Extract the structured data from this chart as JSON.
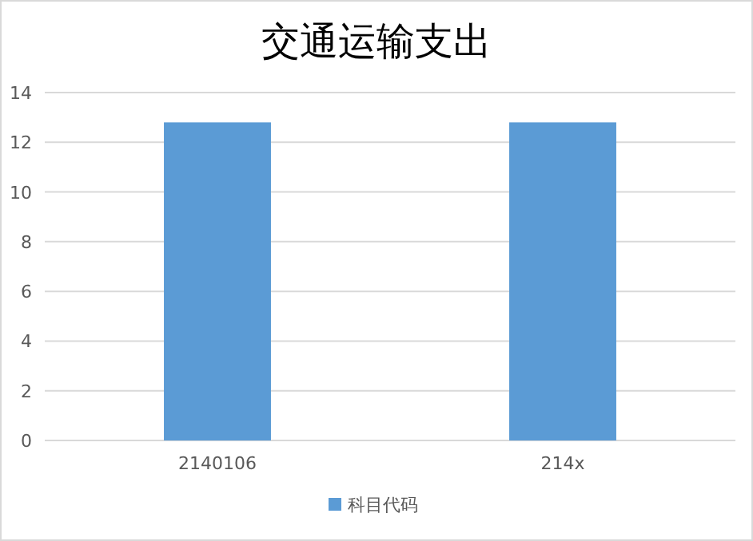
{
  "chart_data": {
    "type": "bar",
    "title": "交通运输支出",
    "categories": [
      "2140106",
      "214x"
    ],
    "series": [
      {
        "name": "科目代码",
        "color": "#5b9bd5",
        "values": [
          12.8,
          12.8
        ]
      }
    ],
    "ylim": [
      0,
      14
    ],
    "yticks": [
      0,
      2,
      4,
      6,
      8,
      10,
      12,
      14
    ],
    "grid": "y",
    "legend": "bottom"
  }
}
